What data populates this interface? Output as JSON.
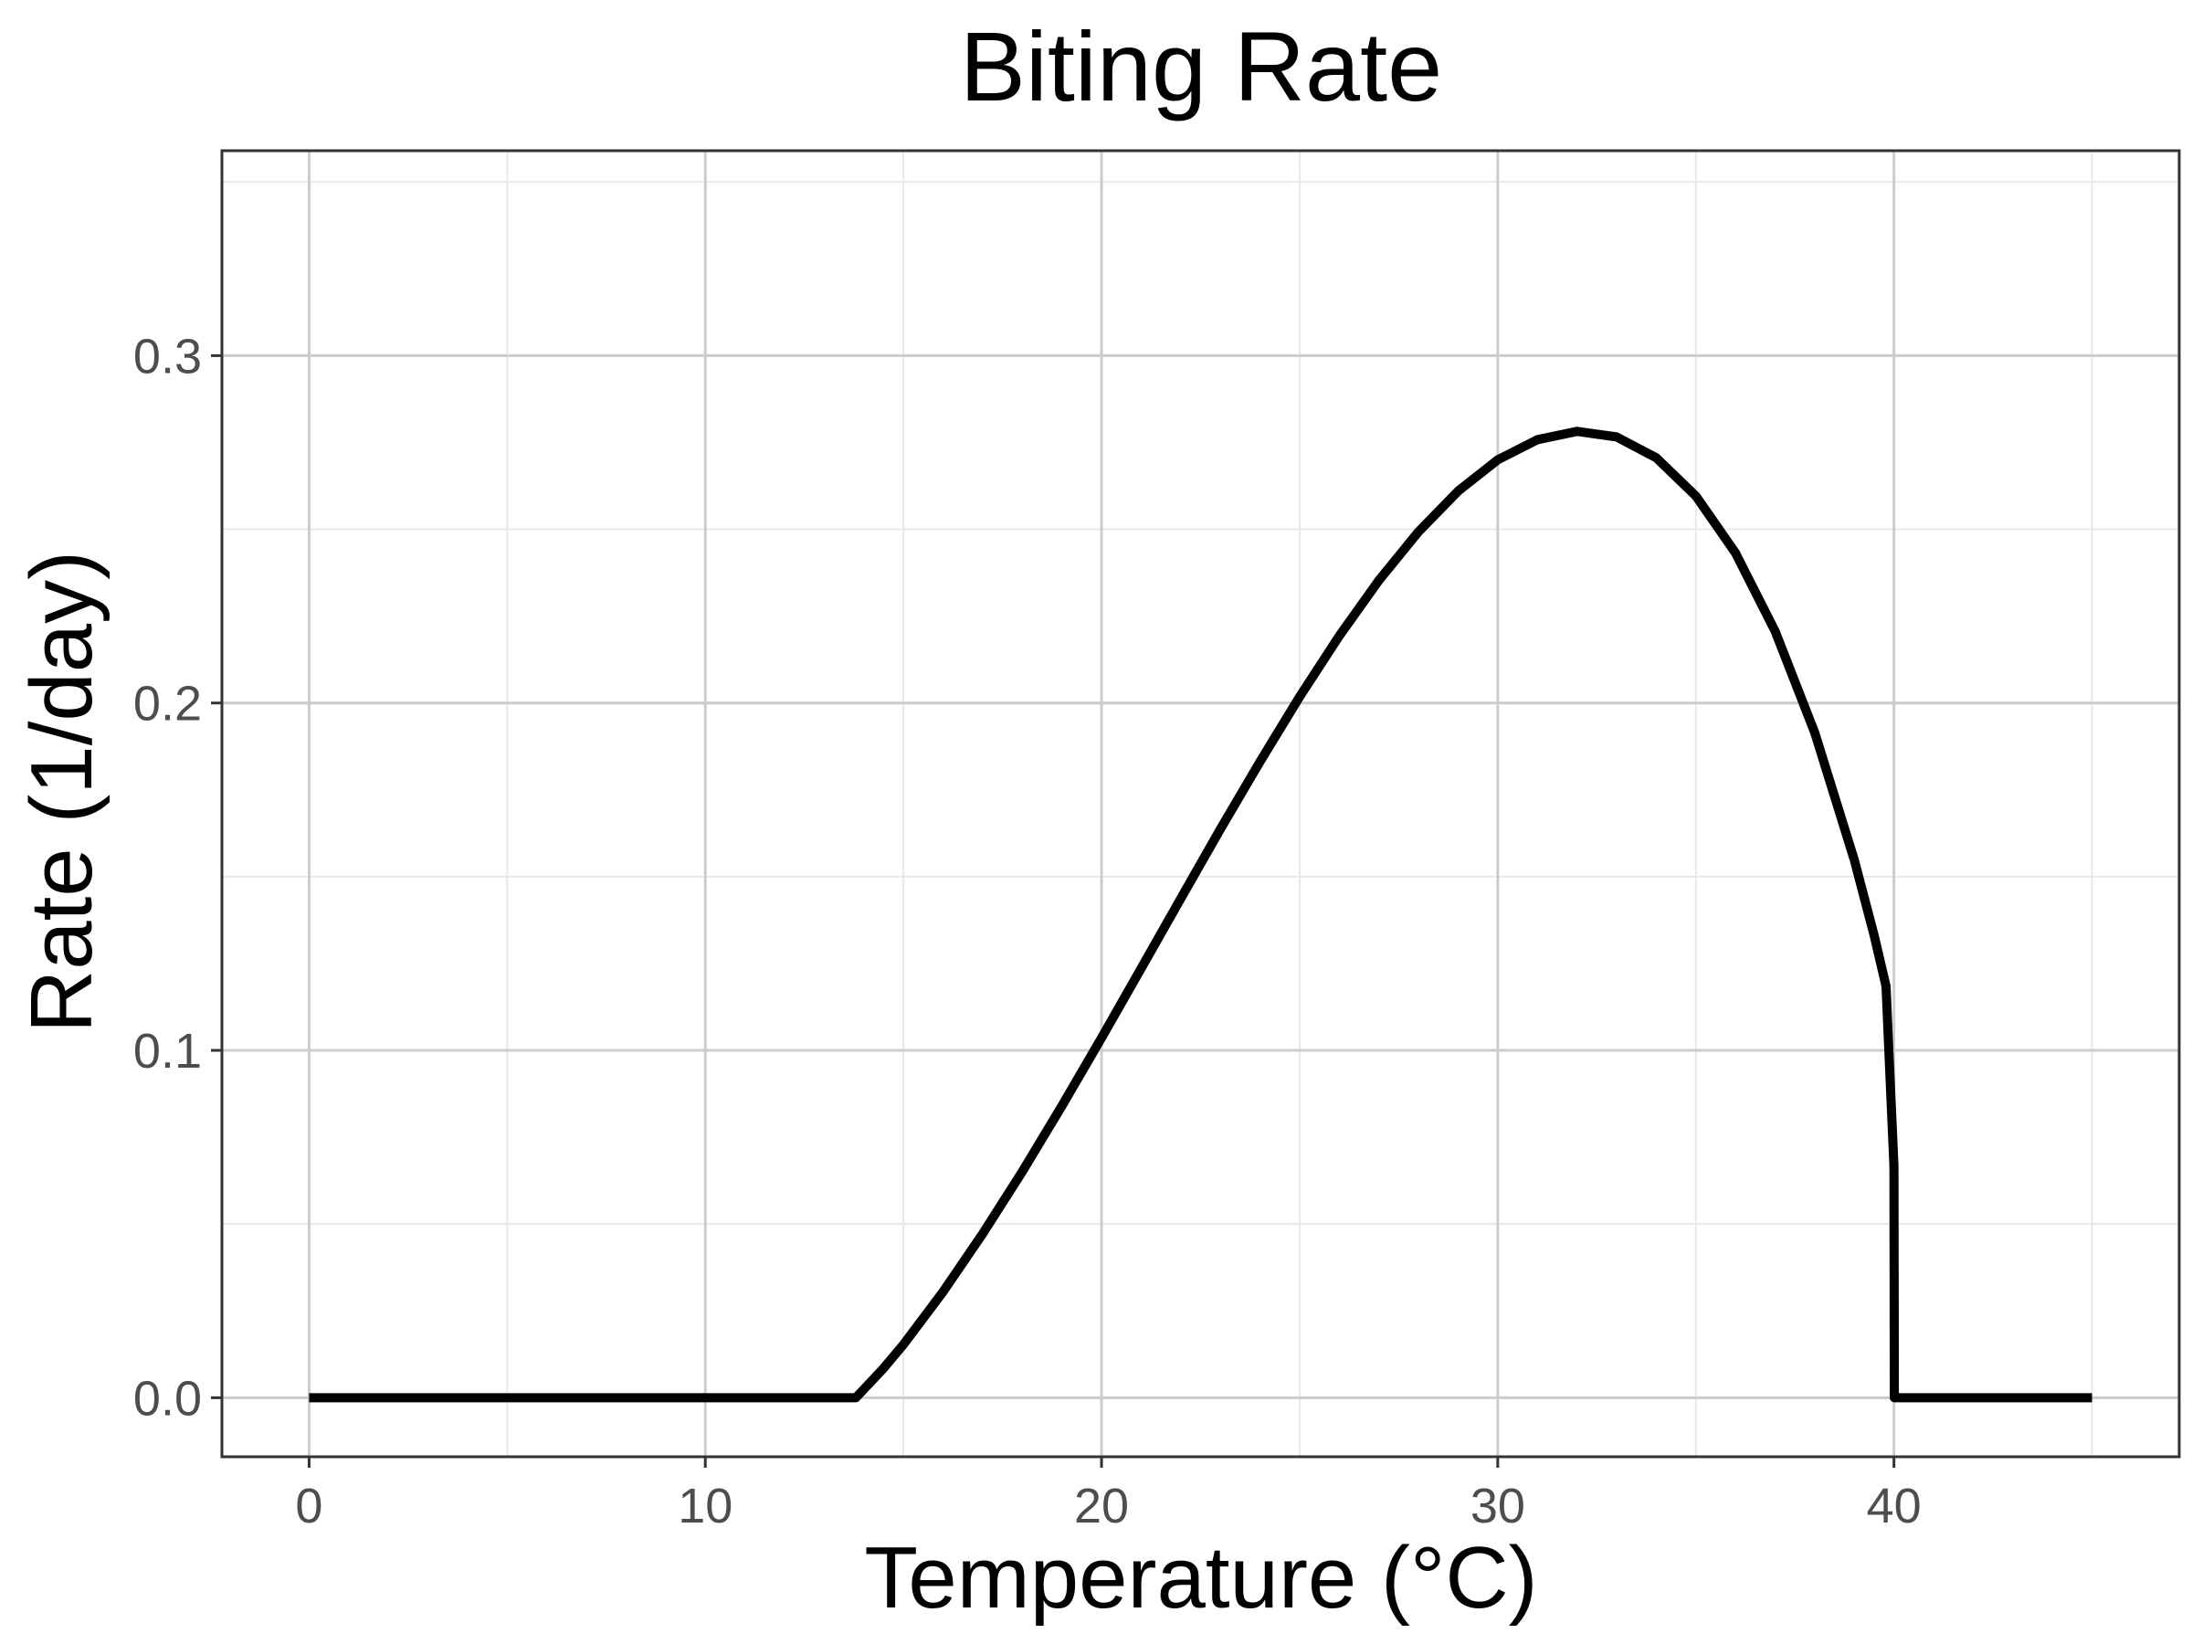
{
  "chart_data": {
    "type": "line",
    "title": "Biting Rate",
    "xlabel": "Temperature (°C)",
    "ylabel": "Rate (1/day)",
    "xlim": [
      -2.2,
      47.2
    ],
    "ylim": [
      -0.017,
      0.359
    ],
    "x_ticks": [
      0,
      10,
      20,
      30,
      40
    ],
    "x_tick_labels": [
      "0",
      "10",
      "20",
      "30",
      "40"
    ],
    "y_ticks": [
      0.0,
      0.1,
      0.2,
      0.3
    ],
    "y_tick_labels": [
      "0.0",
      "0.1",
      "0.2",
      "0.3"
    ],
    "x_minor_ticks": [
      5,
      15,
      25,
      35,
      45
    ],
    "y_minor_ticks": [
      0.05,
      0.15,
      0.25,
      0.35
    ],
    "grid": true,
    "legend": "none",
    "line_color": "#000000",
    "series": [
      {
        "x": [
          0,
          5,
          10,
          13.8,
          14.5,
          15,
          16,
          17,
          18,
          19,
          20,
          21,
          22,
          23,
          24,
          25,
          26,
          27,
          28,
          29,
          30,
          31,
          32,
          33,
          34,
          35,
          36,
          37,
          38,
          39,
          39.5,
          39.8,
          40,
          40.01,
          41,
          43,
          45
        ],
        "y": [
          0,
          0,
          0,
          0,
          0.0085,
          0.0153,
          0.0305,
          0.0472,
          0.0651,
          0.084,
          0.1036,
          0.1236,
          0.1437,
          0.1637,
          0.1831,
          0.2018,
          0.2193,
          0.2353,
          0.2493,
          0.261,
          0.27,
          0.2758,
          0.2782,
          0.2766,
          0.2706,
          0.2596,
          0.2432,
          0.2207,
          0.1915,
          0.1548,
          0.1331,
          0.1185,
          0.0667,
          0,
          0,
          0,
          0
        ]
      }
    ]
  }
}
